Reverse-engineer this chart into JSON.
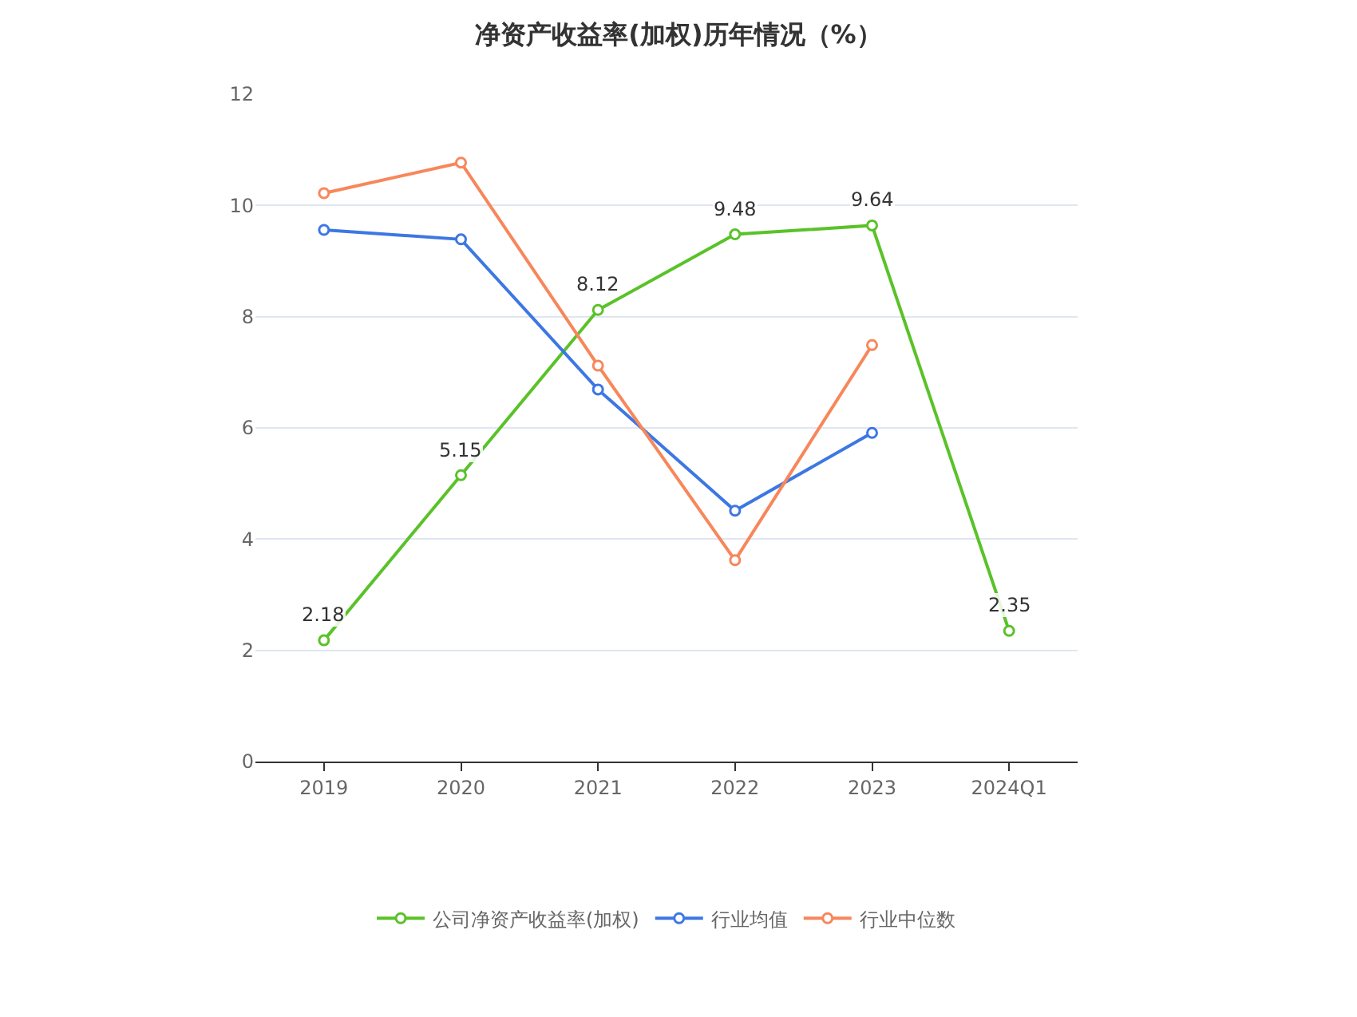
{
  "chart_data": {
    "type": "line",
    "title": "净资产收益率(加权)历年情况（%）",
    "categories": [
      "2019",
      "2020",
      "2021",
      "2022",
      "2023",
      "2024Q1"
    ],
    "series": [
      {
        "name": "公司净资产收益率(加权)",
        "color": "#5ac229",
        "values": [
          2.18,
          5.15,
          8.12,
          9.48,
          9.64,
          2.35
        ],
        "value_labels": [
          "2.18",
          "5.15",
          "8.12",
          "9.48",
          "9.64",
          "2.35"
        ]
      },
      {
        "name": "行业均值",
        "color": "#3d77e3",
        "values": [
          9.56,
          9.39,
          6.69,
          4.51,
          5.91,
          null
        ]
      },
      {
        "name": "行业中位数",
        "color": "#f7875b",
        "values": [
          10.22,
          10.77,
          7.12,
          3.62,
          7.49,
          null
        ]
      }
    ],
    "ylim": [
      0,
      12
    ],
    "yticks": [
      0,
      2,
      4,
      6,
      8,
      10,
      12
    ],
    "grid": "y",
    "legend": "bottom",
    "marker": "circle",
    "line_style": "solid"
  }
}
